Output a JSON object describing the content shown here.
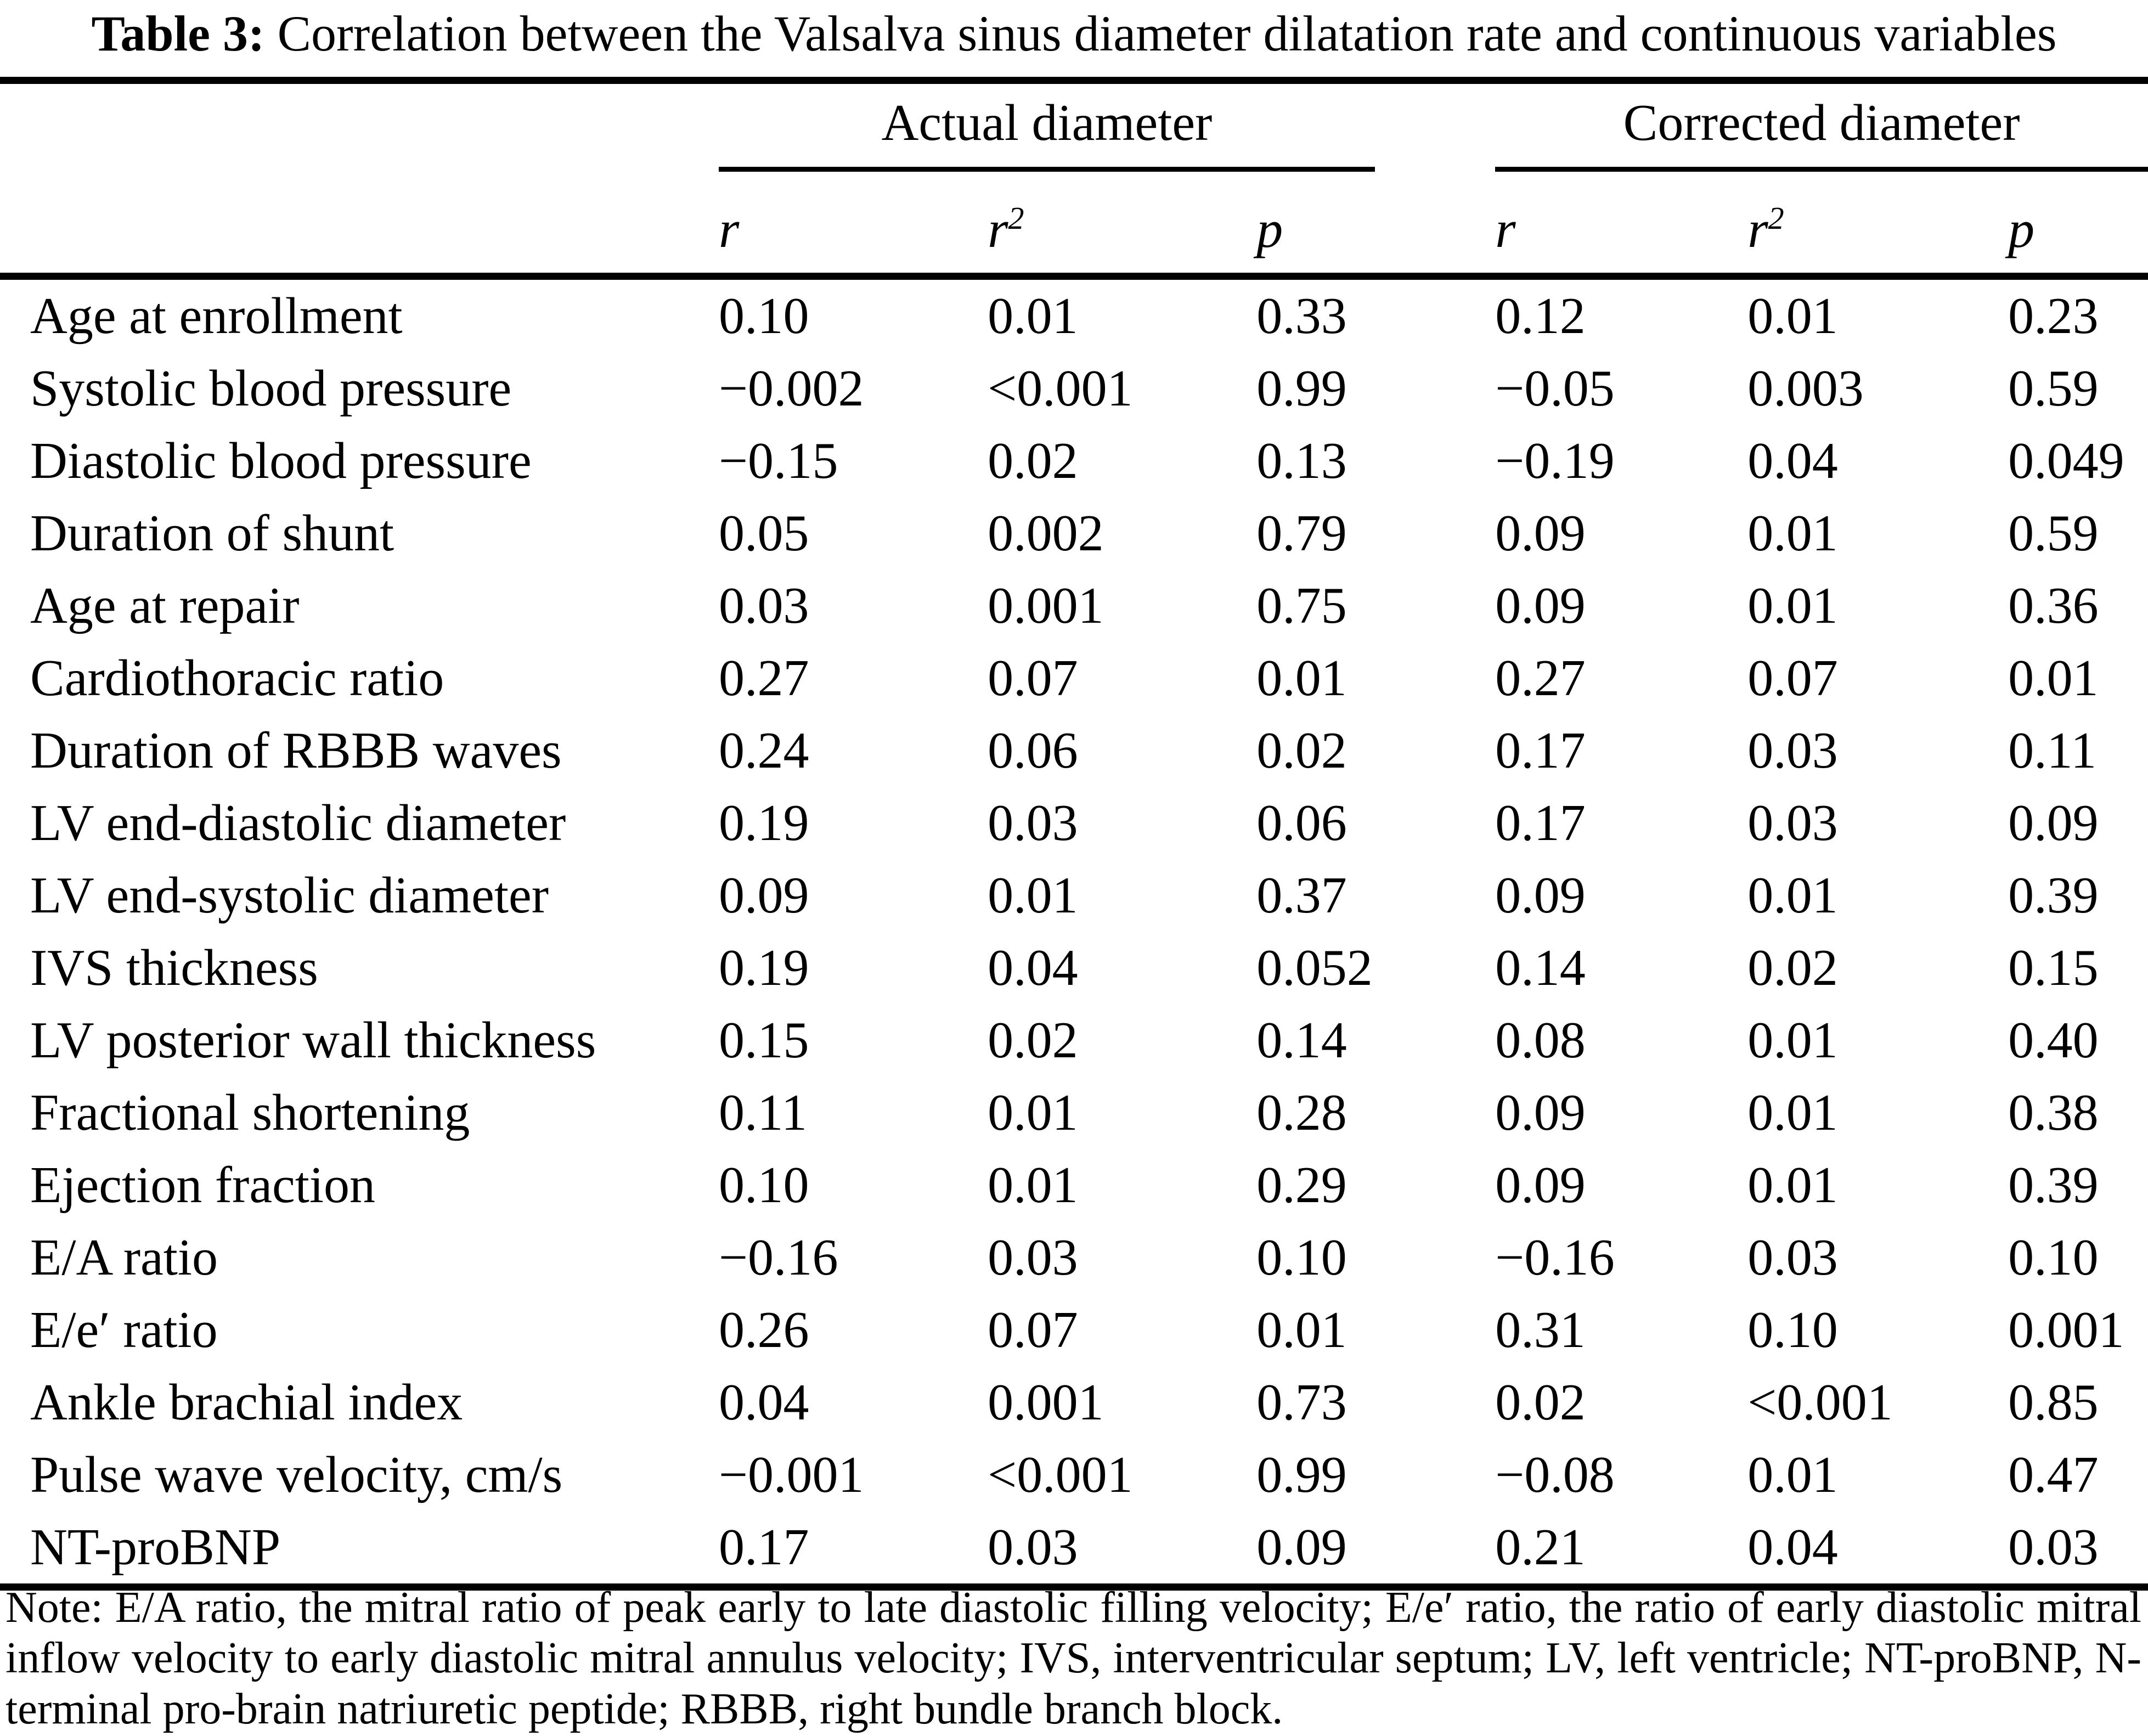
{
  "title": {
    "label": "Table 3:",
    "text": "Correlation between the Valsalva sinus diameter dilatation rate and continuous variables"
  },
  "table": {
    "group_headers": [
      {
        "label": "Actual diameter"
      },
      {
        "label": "Corrected diameter"
      }
    ],
    "sub_headers": [
      {
        "base": "r",
        "sup": ""
      },
      {
        "base": "r",
        "sup": "2"
      },
      {
        "base": "p",
        "sup": ""
      },
      {
        "base": "r",
        "sup": ""
      },
      {
        "base": "r",
        "sup": "2"
      },
      {
        "base": "p",
        "sup": ""
      }
    ],
    "rows": [
      {
        "variable": "Age at enrollment",
        "values": [
          "0.10",
          "0.01",
          "0.33",
          "0.12",
          "0.01",
          "0.23"
        ]
      },
      {
        "variable": "Systolic blood pressure",
        "values": [
          "−0.002",
          "<0.001",
          "0.99",
          "−0.05",
          "0.003",
          "0.59"
        ]
      },
      {
        "variable": "Diastolic blood pressure",
        "values": [
          "−0.15",
          "0.02",
          "0.13",
          "−0.19",
          "0.04",
          "0.049"
        ]
      },
      {
        "variable": "Duration of shunt",
        "values": [
          "0.05",
          "0.002",
          "0.79",
          "0.09",
          "0.01",
          "0.59"
        ]
      },
      {
        "variable": "Age at repair",
        "values": [
          "0.03",
          "0.001",
          "0.75",
          "0.09",
          "0.01",
          "0.36"
        ]
      },
      {
        "variable": "Cardiothoracic ratio",
        "values": [
          "0.27",
          "0.07",
          "0.01",
          "0.27",
          "0.07",
          "0.01"
        ]
      },
      {
        "variable": "Duration of RBBB waves",
        "values": [
          "0.24",
          "0.06",
          "0.02",
          "0.17",
          "0.03",
          "0.11"
        ]
      },
      {
        "variable": "LV end-diastolic diameter",
        "values": [
          "0.19",
          "0.03",
          "0.06",
          "0.17",
          "0.03",
          "0.09"
        ]
      },
      {
        "variable": "LV end-systolic diameter",
        "values": [
          "0.09",
          "0.01",
          "0.37",
          "0.09",
          "0.01",
          "0.39"
        ]
      },
      {
        "variable": "IVS thickness",
        "values": [
          "0.19",
          "0.04",
          "0.052",
          "0.14",
          "0.02",
          "0.15"
        ]
      },
      {
        "variable": "LV posterior wall thickness",
        "values": [
          "0.15",
          "0.02",
          "0.14",
          "0.08",
          "0.01",
          "0.40"
        ]
      },
      {
        "variable": "Fractional shortening",
        "values": [
          "0.11",
          "0.01",
          "0.28",
          "0.09",
          "0.01",
          "0.38"
        ]
      },
      {
        "variable": "Ejection fraction",
        "values": [
          "0.10",
          "0.01",
          "0.29",
          "0.09",
          "0.01",
          "0.39"
        ]
      },
      {
        "variable": "E/A ratio",
        "values": [
          "−0.16",
          "0.03",
          "0.10",
          "−0.16",
          "0.03",
          "0.10"
        ]
      },
      {
        "variable": "E/e′ ratio",
        "values": [
          "0.26",
          "0.07",
          "0.01",
          "0.31",
          "0.10",
          "0.001"
        ]
      },
      {
        "variable": "Ankle brachial index",
        "values": [
          "0.04",
          "0.001",
          "0.73",
          "0.02",
          "<0.001",
          "0.85"
        ]
      },
      {
        "variable": "Pulse wave velocity, cm/s",
        "values": [
          "−0.001",
          "<0.001",
          "0.99",
          "−0.08",
          "0.01",
          "0.47"
        ]
      },
      {
        "variable": "NT-proBNP",
        "values": [
          "0.17",
          "0.03",
          "0.09",
          "0.21",
          "0.04",
          "0.03"
        ]
      }
    ]
  },
  "footnote": "Note: E/A ratio, the mitral ratio of peak early to late diastolic filling velocity; E/e′ ratio, the ratio of early diastolic mitral inflow velocity to early diastolic mitral annulus velocity; IVS, interventricular septum; LV, left ventricle; NT-proBNP, N-terminal pro-brain natriuretic peptide; RBBB, right bundle branch block."
}
